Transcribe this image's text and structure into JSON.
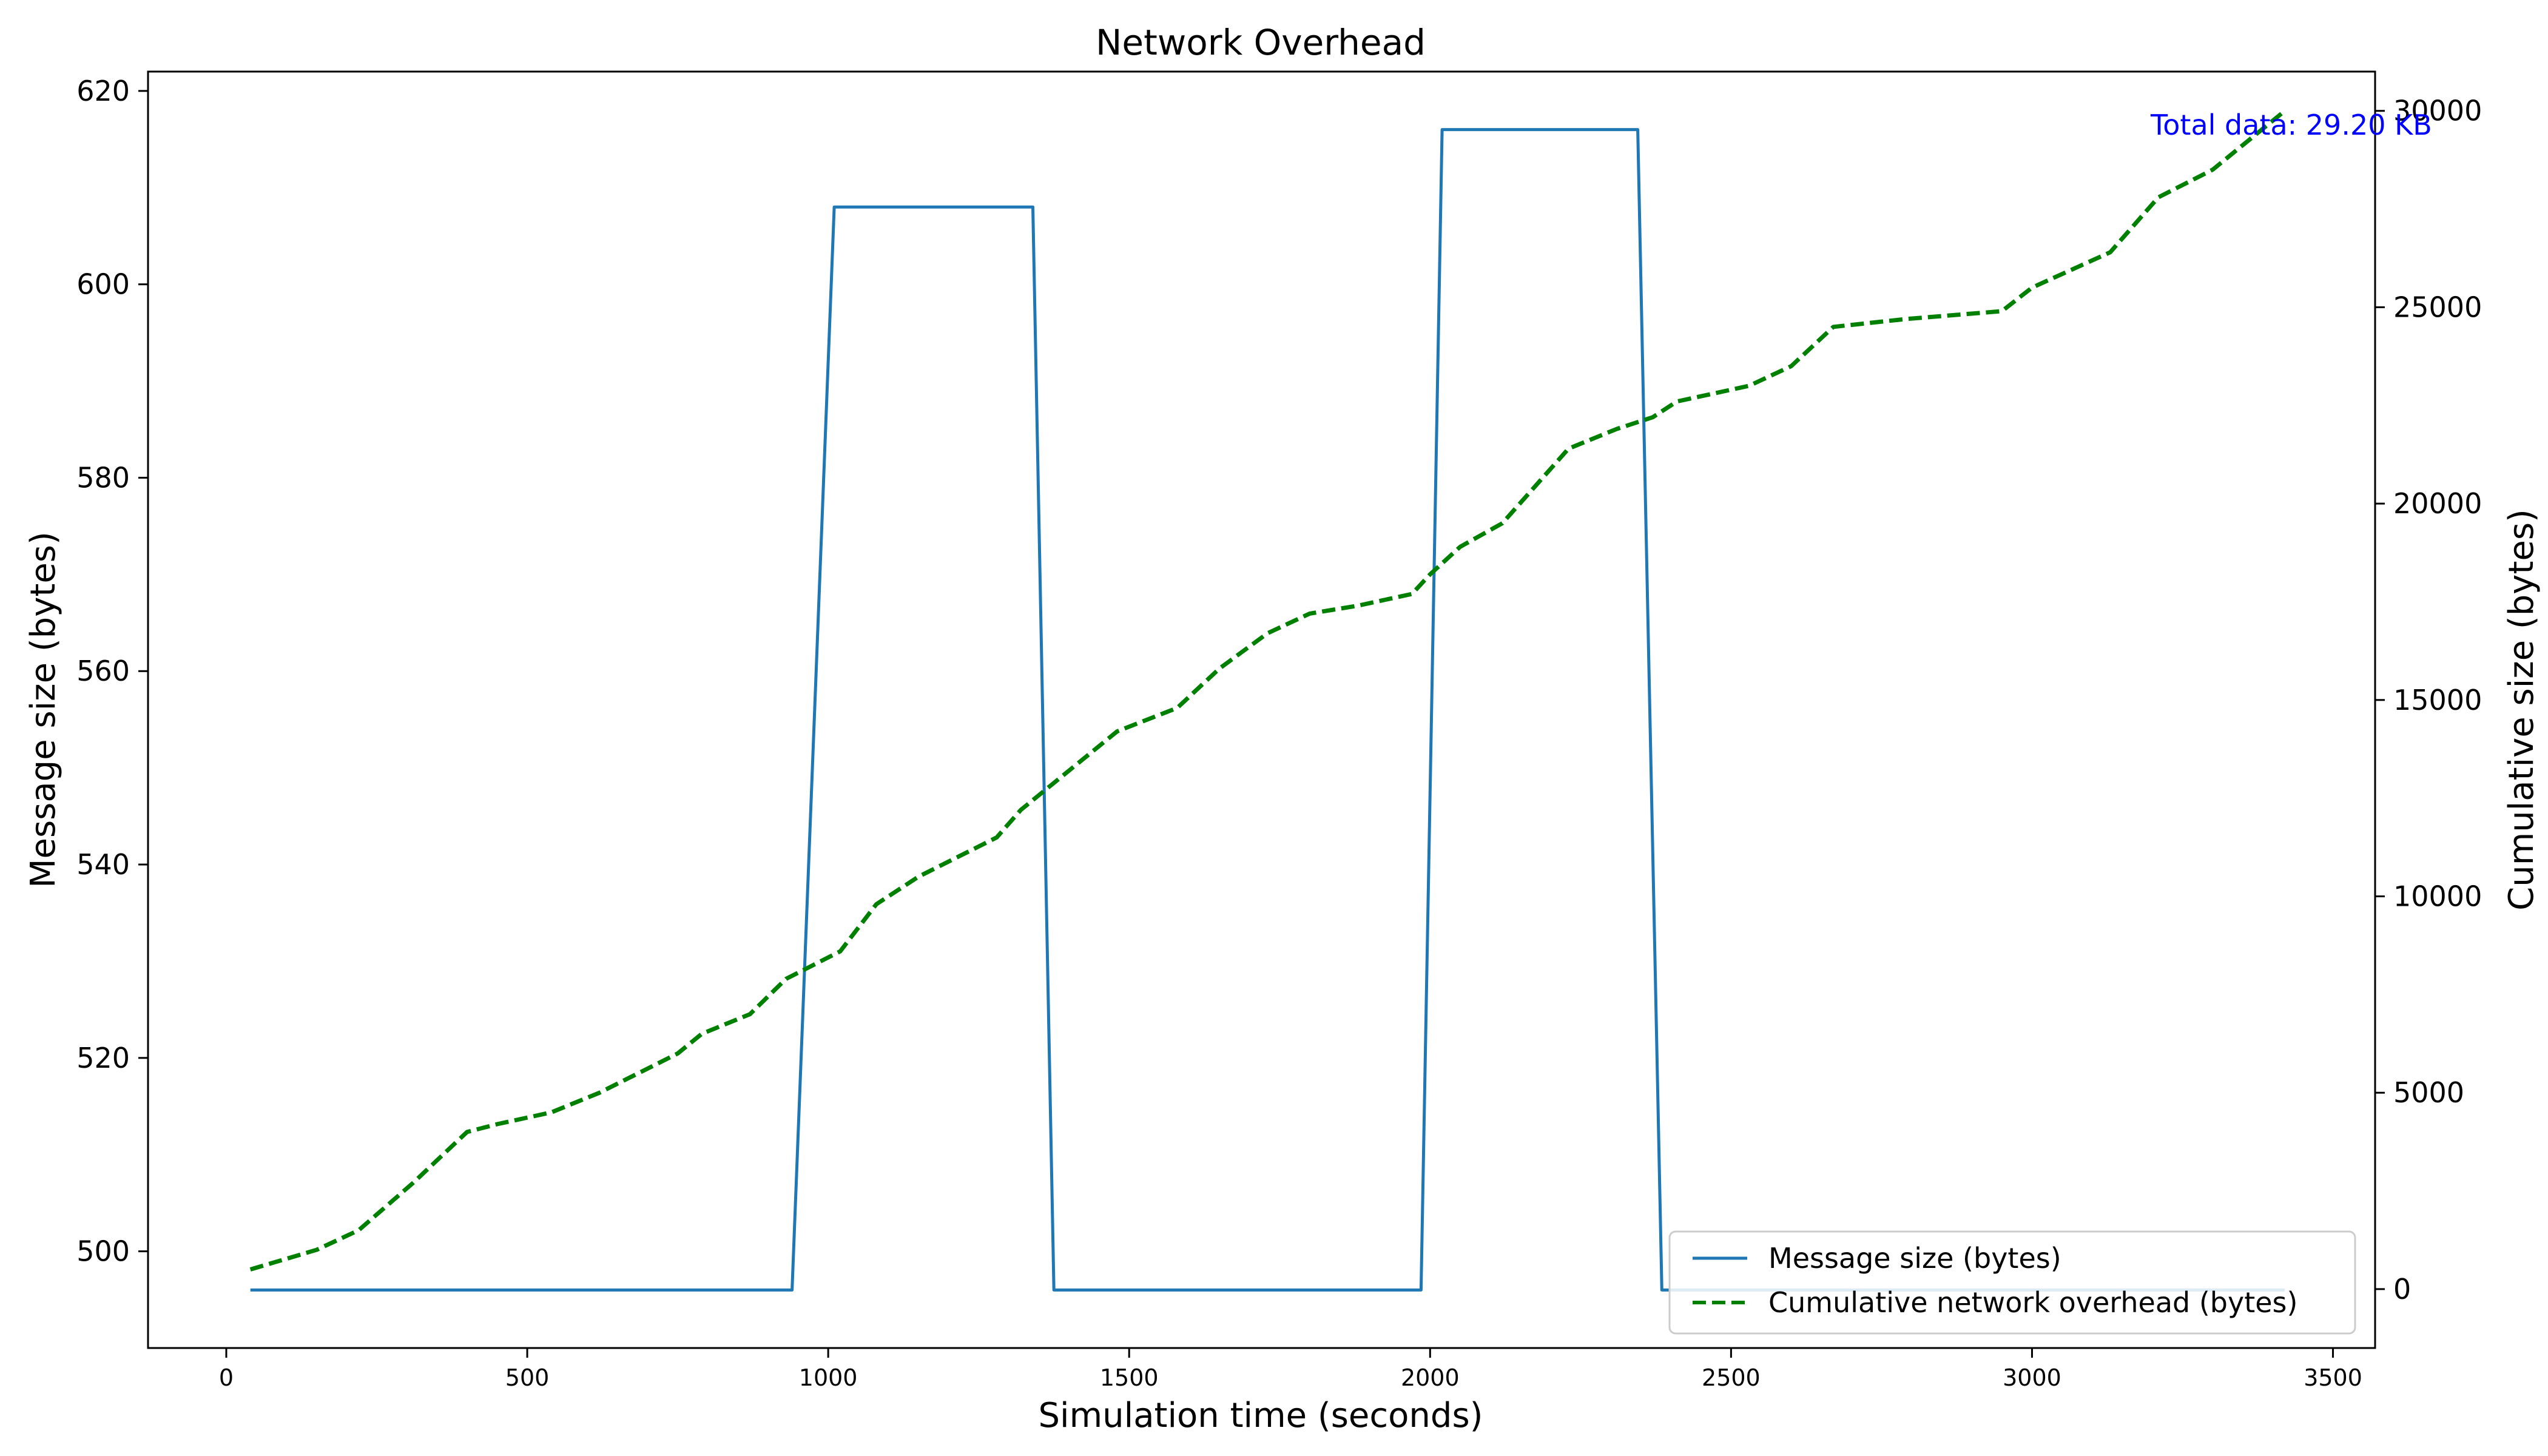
{
  "chart_data": {
    "type": "line",
    "title": "Network Overhead",
    "xlabel": "Simulation time (seconds)",
    "ylabel": "Message size (bytes)",
    "y2label": "Cumulative size (bytes)",
    "xlim": [
      -130,
      3570
    ],
    "ylim": [
      490,
      622
    ],
    "y2lim": [
      -1500,
      31000
    ],
    "x_ticks": [
      0,
      500,
      1000,
      1500,
      2000,
      2500,
      3000,
      3500
    ],
    "y_ticks": [
      500,
      520,
      540,
      560,
      580,
      600,
      620
    ],
    "y2_ticks": [
      0,
      5000,
      10000,
      15000,
      20000,
      25000,
      30000
    ],
    "grid": false,
    "legend_position": "lower right",
    "annotation": {
      "text": "Total data: 29.20 KB",
      "color": "#0000ff"
    },
    "series": [
      {
        "name": "Message size (bytes)",
        "axis": "left",
        "color": "#1f77b4",
        "style": "solid",
        "x": [
          40,
          940,
          1010,
          1340,
          1375,
          1985,
          2020,
          2345,
          2385,
          3420
        ],
        "y": [
          496,
          496,
          608,
          608,
          496,
          496,
          616,
          616,
          496,
          496
        ]
      },
      {
        "name": "Cumulative network overhead (bytes)",
        "axis": "right",
        "color": "#008000",
        "style": "dashed",
        "x": [
          40,
          150,
          220,
          310,
          400,
          450,
          540,
          620,
          750,
          790,
          870,
          930,
          1020,
          1080,
          1150,
          1280,
          1320,
          1400,
          1480,
          1580,
          1650,
          1730,
          1800,
          1880,
          1970,
          2000,
          2050,
          2120,
          2230,
          2310,
          2370,
          2410,
          2530,
          2600,
          2670,
          2790,
          2950,
          3000,
          3130,
          3210,
          3300,
          3420
        ],
        "y": [
          500,
          1000,
          1500,
          2700,
          4000,
          4200,
          4500,
          5000,
          6000,
          6500,
          7000,
          7900,
          8600,
          9800,
          10500,
          11500,
          12200,
          13200,
          14200,
          14800,
          15800,
          16700,
          17200,
          17400,
          17700,
          18200,
          18900,
          19500,
          21400,
          21900,
          22200,
          22600,
          23000,
          23500,
          24500,
          24700,
          24900,
          25500,
          26400,
          27800,
          28500,
          30000
        ]
      }
    ]
  }
}
